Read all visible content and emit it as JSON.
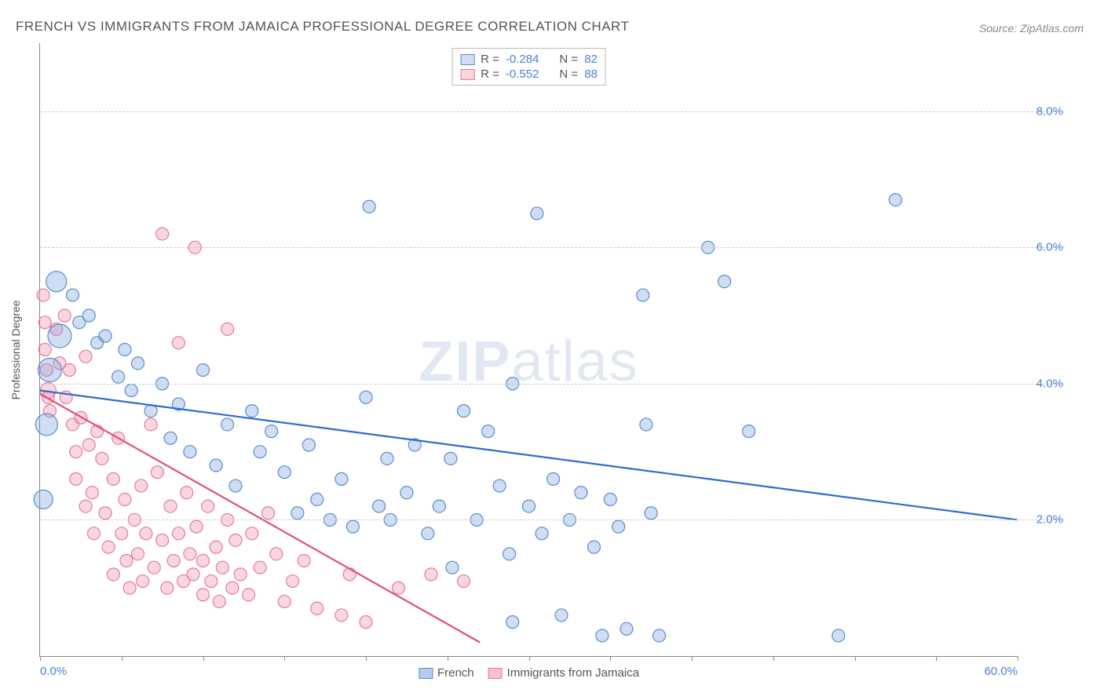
{
  "title": "FRENCH VS IMMIGRANTS FROM JAMAICA PROFESSIONAL DEGREE CORRELATION CHART",
  "source": "Source: ZipAtlas.com",
  "ylabel": "Professional Degree",
  "watermark_zip": "ZIP",
  "watermark_atlas": "atlas",
  "chart": {
    "type": "scatter",
    "xlim": [
      0,
      60
    ],
    "ylim": [
      0,
      9
    ],
    "xticks": [
      0,
      5,
      10,
      15,
      20,
      25,
      30,
      35,
      40,
      45,
      50,
      55,
      60
    ],
    "xtick_labels": {
      "0": "0.0%",
      "60": "60.0%"
    },
    "yticks": [
      2,
      4,
      6,
      8
    ],
    "ytick_labels": {
      "2": "2.0%",
      "4": "4.0%",
      "6": "6.0%",
      "8": "8.0%"
    },
    "grid_color": "#cccccc",
    "background_color": "#ffffff",
    "axis_color": "#888888",
    "tick_label_color": "#4a7fd6",
    "series": [
      {
        "name": "French",
        "fill": "rgba(120,160,220,0.35)",
        "stroke": "#5a8cd0",
        "trend_color": "#2d6cd0",
        "r_label": "R =",
        "r_value": "-0.284",
        "n_label": "N =",
        "n_value": "82",
        "trend": {
          "x1": 0,
          "y1": 3.9,
          "x2": 60,
          "y2": 2.0
        },
        "points": [
          {
            "x": 1.0,
            "y": 5.5,
            "r": 13
          },
          {
            "x": 1.2,
            "y": 4.7,
            "r": 15
          },
          {
            "x": 0.6,
            "y": 4.2,
            "r": 15
          },
          {
            "x": 0.4,
            "y": 3.4,
            "r": 14
          },
          {
            "x": 0.2,
            "y": 2.3,
            "r": 12
          },
          {
            "x": 2.0,
            "y": 5.3,
            "r": 8
          },
          {
            "x": 2.4,
            "y": 4.9,
            "r": 8
          },
          {
            "x": 3.0,
            "y": 5.0,
            "r": 8
          },
          {
            "x": 3.5,
            "y": 4.6,
            "r": 8
          },
          {
            "x": 4.0,
            "y": 4.7,
            "r": 8
          },
          {
            "x": 4.8,
            "y": 4.1,
            "r": 8
          },
          {
            "x": 5.2,
            "y": 4.5,
            "r": 8
          },
          {
            "x": 5.6,
            "y": 3.9,
            "r": 8
          },
          {
            "x": 6.0,
            "y": 4.3,
            "r": 8
          },
          {
            "x": 6.8,
            "y": 3.6,
            "r": 8
          },
          {
            "x": 7.5,
            "y": 4.0,
            "r": 8
          },
          {
            "x": 8.0,
            "y": 3.2,
            "r": 8
          },
          {
            "x": 8.5,
            "y": 3.7,
            "r": 8
          },
          {
            "x": 9.2,
            "y": 3.0,
            "r": 8
          },
          {
            "x": 10.0,
            "y": 4.2,
            "r": 8
          },
          {
            "x": 10.8,
            "y": 2.8,
            "r": 8
          },
          {
            "x": 11.5,
            "y": 3.4,
            "r": 8
          },
          {
            "x": 12.0,
            "y": 2.5,
            "r": 8
          },
          {
            "x": 13.0,
            "y": 3.6,
            "r": 8
          },
          {
            "x": 13.5,
            "y": 3.0,
            "r": 8
          },
          {
            "x": 14.2,
            "y": 3.3,
            "r": 8
          },
          {
            "x": 15.0,
            "y": 2.7,
            "r": 8
          },
          {
            "x": 15.8,
            "y": 2.1,
            "r": 8
          },
          {
            "x": 16.5,
            "y": 3.1,
            "r": 8
          },
          {
            "x": 17.0,
            "y": 2.3,
            "r": 8
          },
          {
            "x": 17.8,
            "y": 2.0,
            "r": 8
          },
          {
            "x": 18.5,
            "y": 2.6,
            "r": 8
          },
          {
            "x": 19.2,
            "y": 1.9,
            "r": 8
          },
          {
            "x": 20.0,
            "y": 3.8,
            "r": 8
          },
          {
            "x": 20.2,
            "y": 6.6,
            "r": 8
          },
          {
            "x": 20.8,
            "y": 2.2,
            "r": 8
          },
          {
            "x": 21.3,
            "y": 2.9,
            "r": 8
          },
          {
            "x": 21.5,
            "y": 2.0,
            "r": 8
          },
          {
            "x": 22.5,
            "y": 2.4,
            "r": 8
          },
          {
            "x": 23.0,
            "y": 3.1,
            "r": 8
          },
          {
            "x": 23.8,
            "y": 1.8,
            "r": 8
          },
          {
            "x": 24.5,
            "y": 2.2,
            "r": 8
          },
          {
            "x": 25.2,
            "y": 2.9,
            "r": 8
          },
          {
            "x": 25.3,
            "y": 1.3,
            "r": 8
          },
          {
            "x": 26.0,
            "y": 3.6,
            "r": 8
          },
          {
            "x": 26.8,
            "y": 2.0,
            "r": 8
          },
          {
            "x": 27.5,
            "y": 3.3,
            "r": 8
          },
          {
            "x": 28.2,
            "y": 2.5,
            "r": 8
          },
          {
            "x": 28.8,
            "y": 1.5,
            "r": 8
          },
          {
            "x": 29.0,
            "y": 4.0,
            "r": 8
          },
          {
            "x": 29.0,
            "y": 0.5,
            "r": 8
          },
          {
            "x": 30.0,
            "y": 2.2,
            "r": 8
          },
          {
            "x": 30.5,
            "y": 6.5,
            "r": 8
          },
          {
            "x": 30.8,
            "y": 1.8,
            "r": 8
          },
          {
            "x": 31.5,
            "y": 2.6,
            "r": 8
          },
          {
            "x": 32.0,
            "y": 0.6,
            "r": 8
          },
          {
            "x": 32.5,
            "y": 2.0,
            "r": 8
          },
          {
            "x": 33.2,
            "y": 2.4,
            "r": 8
          },
          {
            "x": 34.0,
            "y": 1.6,
            "r": 8
          },
          {
            "x": 34.5,
            "y": 0.3,
            "r": 8
          },
          {
            "x": 35.0,
            "y": 2.3,
            "r": 8
          },
          {
            "x": 35.5,
            "y": 1.9,
            "r": 8
          },
          {
            "x": 36.0,
            "y": 0.4,
            "r": 8
          },
          {
            "x": 37.0,
            "y": 5.3,
            "r": 8
          },
          {
            "x": 37.2,
            "y": 3.4,
            "r": 8
          },
          {
            "x": 37.5,
            "y": 2.1,
            "r": 8
          },
          {
            "x": 38.0,
            "y": 0.3,
            "r": 8
          },
          {
            "x": 41.0,
            "y": 6.0,
            "r": 8
          },
          {
            "x": 42.0,
            "y": 5.5,
            "r": 8
          },
          {
            "x": 43.5,
            "y": 3.3,
            "r": 8
          },
          {
            "x": 49.0,
            "y": 0.3,
            "r": 8
          },
          {
            "x": 52.5,
            "y": 6.7,
            "r": 8
          }
        ]
      },
      {
        "name": "Immigrants from Jamaica",
        "fill": "rgba(240,140,165,0.35)",
        "stroke": "#e67a99",
        "trend_color": "#e44d7a",
        "r_label": "R =",
        "r_value": "-0.552",
        "n_label": "N =",
        "n_value": "88",
        "trend": {
          "x1": 0,
          "y1": 3.85,
          "x2": 27,
          "y2": 0.2
        },
        "points": [
          {
            "x": 0.2,
            "y": 5.3,
            "r": 8
          },
          {
            "x": 0.3,
            "y": 4.9,
            "r": 8
          },
          {
            "x": 0.3,
            "y": 4.5,
            "r": 8
          },
          {
            "x": 0.4,
            "y": 4.2,
            "r": 8
          },
          {
            "x": 0.5,
            "y": 3.9,
            "r": 10
          },
          {
            "x": 0.5,
            "y": 3.8,
            "r": 8
          },
          {
            "x": 0.6,
            "y": 3.6,
            "r": 8
          },
          {
            "x": 1.0,
            "y": 4.8,
            "r": 8
          },
          {
            "x": 1.2,
            "y": 4.3,
            "r": 8
          },
          {
            "x": 1.5,
            "y": 5.0,
            "r": 8
          },
          {
            "x": 1.6,
            "y": 3.8,
            "r": 8
          },
          {
            "x": 1.8,
            "y": 4.2,
            "r": 8
          },
          {
            "x": 2.0,
            "y": 3.4,
            "r": 8
          },
          {
            "x": 2.2,
            "y": 3.0,
            "r": 8
          },
          {
            "x": 2.2,
            "y": 2.6,
            "r": 8
          },
          {
            "x": 2.5,
            "y": 3.5,
            "r": 8
          },
          {
            "x": 2.8,
            "y": 4.4,
            "r": 8
          },
          {
            "x": 2.8,
            "y": 2.2,
            "r": 8
          },
          {
            "x": 3.0,
            "y": 3.1,
            "r": 8
          },
          {
            "x": 3.2,
            "y": 2.4,
            "r": 8
          },
          {
            "x": 3.3,
            "y": 1.8,
            "r": 8
          },
          {
            "x": 3.5,
            "y": 3.3,
            "r": 8
          },
          {
            "x": 3.8,
            "y": 2.9,
            "r": 8
          },
          {
            "x": 4.0,
            "y": 2.1,
            "r": 8
          },
          {
            "x": 4.2,
            "y": 1.6,
            "r": 8
          },
          {
            "x": 4.5,
            "y": 2.6,
            "r": 8
          },
          {
            "x": 4.5,
            "y": 1.2,
            "r": 8
          },
          {
            "x": 4.8,
            "y": 3.2,
            "r": 8
          },
          {
            "x": 5.0,
            "y": 1.8,
            "r": 8
          },
          {
            "x": 5.2,
            "y": 2.3,
            "r": 8
          },
          {
            "x": 5.3,
            "y": 1.4,
            "r": 8
          },
          {
            "x": 5.5,
            "y": 1.0,
            "r": 8
          },
          {
            "x": 5.8,
            "y": 2.0,
            "r": 8
          },
          {
            "x": 6.0,
            "y": 1.5,
            "r": 8
          },
          {
            "x": 6.2,
            "y": 2.5,
            "r": 8
          },
          {
            "x": 6.3,
            "y": 1.1,
            "r": 8
          },
          {
            "x": 6.5,
            "y": 1.8,
            "r": 8
          },
          {
            "x": 6.8,
            "y": 3.4,
            "r": 8
          },
          {
            "x": 7.0,
            "y": 1.3,
            "r": 8
          },
          {
            "x": 7.2,
            "y": 2.7,
            "r": 8
          },
          {
            "x": 7.5,
            "y": 1.7,
            "r": 8
          },
          {
            "x": 7.5,
            "y": 6.2,
            "r": 8
          },
          {
            "x": 7.8,
            "y": 1.0,
            "r": 8
          },
          {
            "x": 8.0,
            "y": 2.2,
            "r": 8
          },
          {
            "x": 8.2,
            "y": 1.4,
            "r": 8
          },
          {
            "x": 8.5,
            "y": 4.6,
            "r": 8
          },
          {
            "x": 8.5,
            "y": 1.8,
            "r": 8
          },
          {
            "x": 8.8,
            "y": 1.1,
            "r": 8
          },
          {
            "x": 9.0,
            "y": 2.4,
            "r": 8
          },
          {
            "x": 9.2,
            "y": 1.5,
            "r": 8
          },
          {
            "x": 9.4,
            "y": 1.2,
            "r": 8
          },
          {
            "x": 9.5,
            "y": 6.0,
            "r": 8
          },
          {
            "x": 9.6,
            "y": 1.9,
            "r": 8
          },
          {
            "x": 10.0,
            "y": 0.9,
            "r": 8
          },
          {
            "x": 10.0,
            "y": 1.4,
            "r": 8
          },
          {
            "x": 10.3,
            "y": 2.2,
            "r": 8
          },
          {
            "x": 10.5,
            "y": 1.1,
            "r": 8
          },
          {
            "x": 10.8,
            "y": 1.6,
            "r": 8
          },
          {
            "x": 11.0,
            "y": 0.8,
            "r": 8
          },
          {
            "x": 11.2,
            "y": 1.3,
            "r": 8
          },
          {
            "x": 11.5,
            "y": 2.0,
            "r": 8
          },
          {
            "x": 11.5,
            "y": 4.8,
            "r": 8
          },
          {
            "x": 11.8,
            "y": 1.0,
            "r": 8
          },
          {
            "x": 12.0,
            "y": 1.7,
            "r": 8
          },
          {
            "x": 12.3,
            "y": 1.2,
            "r": 8
          },
          {
            "x": 12.8,
            "y": 0.9,
            "r": 8
          },
          {
            "x": 13.0,
            "y": 1.8,
            "r": 8
          },
          {
            "x": 13.5,
            "y": 1.3,
            "r": 8
          },
          {
            "x": 14.0,
            "y": 2.1,
            "r": 8
          },
          {
            "x": 14.5,
            "y": 1.5,
            "r": 8
          },
          {
            "x": 15.0,
            "y": 0.8,
            "r": 8
          },
          {
            "x": 15.5,
            "y": 1.1,
            "r": 8
          },
          {
            "x": 16.2,
            "y": 1.4,
            "r": 8
          },
          {
            "x": 17.0,
            "y": 0.7,
            "r": 8
          },
          {
            "x": 18.5,
            "y": 0.6,
            "r": 8
          },
          {
            "x": 19.0,
            "y": 1.2,
            "r": 8
          },
          {
            "x": 20.0,
            "y": 0.5,
            "r": 8
          },
          {
            "x": 22.0,
            "y": 1.0,
            "r": 8
          },
          {
            "x": 24.0,
            "y": 1.2,
            "r": 8
          },
          {
            "x": 26.0,
            "y": 1.1,
            "r": 8
          }
        ]
      }
    ]
  },
  "legend_bottom": [
    {
      "label": "French",
      "fill": "rgba(120,160,220,0.55)",
      "stroke": "#5a8cd0"
    },
    {
      "label": "Immigrants from Jamaica",
      "fill": "rgba(240,140,165,0.55)",
      "stroke": "#e67a99"
    }
  ]
}
